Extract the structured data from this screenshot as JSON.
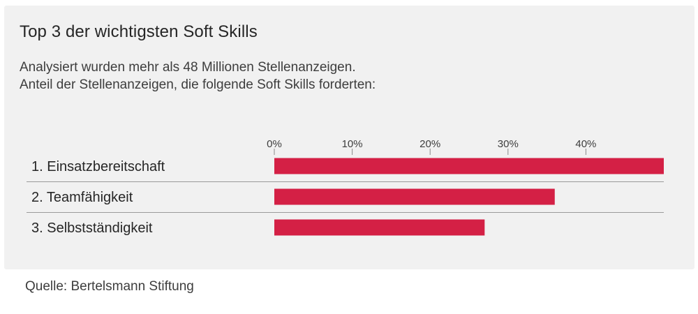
{
  "header": {
    "title": "Top 3 der wichtigsten Soft Skills",
    "subtitle_line1": "Analysiert wurden mehr als 48 Millionen Stellenanzeigen.",
    "subtitle_line2": "Anteil der Stellenanzeigen, die folgende Soft Skills forderten:"
  },
  "footer": {
    "source": "Quelle: Bertelsmann Stiftung"
  },
  "colors": {
    "bar": "#d42045",
    "card_background": "#f1f1f1",
    "separator": "#9a9a9a",
    "tick": "#8a8a8a"
  },
  "chart_data": {
    "type": "bar",
    "orientation": "horizontal",
    "title": "Top 3 der wichtigsten Soft Skills",
    "subtitle": "Analysiert wurden mehr als 48 Millionen Stellenanzeigen. Anteil der Stellenanzeigen, die folgende Soft Skills forderten:",
    "categories": [
      "1. Einsatzbereitschaft",
      "2. Teamfähigkeit",
      "3. Selbstständigkeit"
    ],
    "values": [
      50,
      36,
      27
    ],
    "unit": "%",
    "xlim": [
      0,
      50
    ],
    "x_ticks": [
      0,
      10,
      20,
      30,
      40
    ],
    "x_tick_labels": [
      "0%",
      "10%",
      "20%",
      "30%",
      "40%"
    ],
    "axis_position": "top",
    "grid": false,
    "legend": "none",
    "source": "Quelle: Bertelsmann Stiftung"
  }
}
